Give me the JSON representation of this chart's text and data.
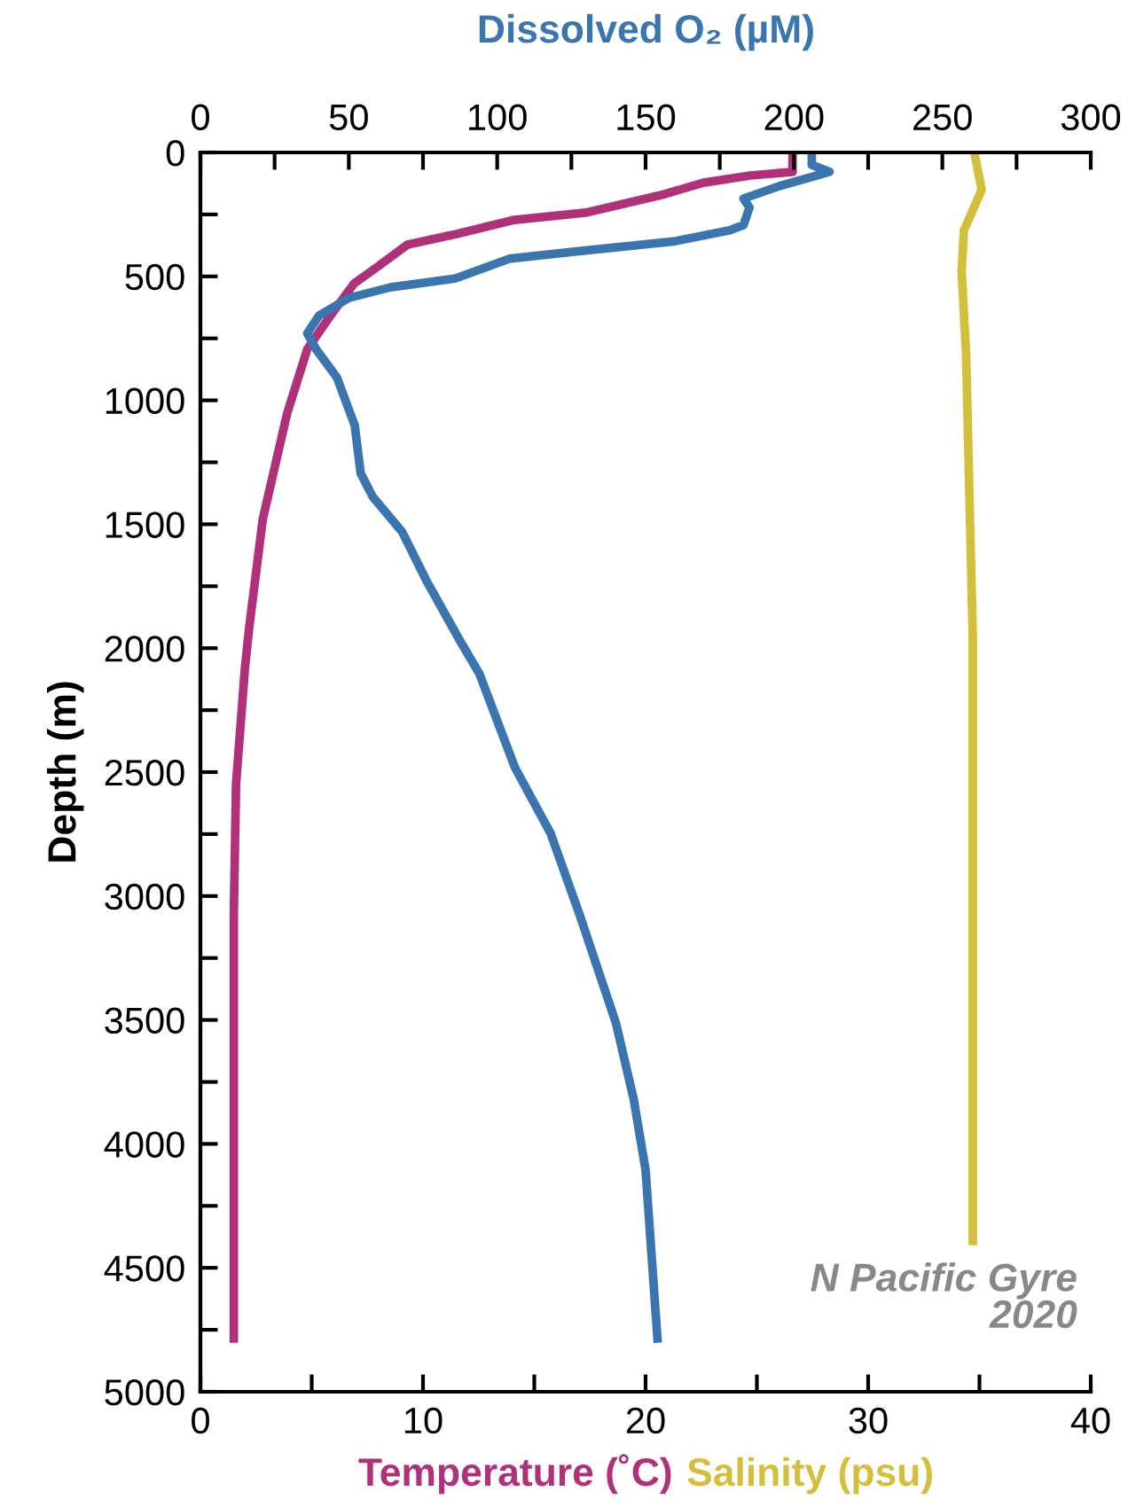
{
  "chart_data": {
    "type": "line",
    "ylabel": "Depth (m)",
    "annotations": [
      "N Pacific Gyre\n2020"
    ],
    "ylim": [
      5000,
      0
    ],
    "yticks": [
      0,
      {
        "value": 250,
        "label": null
      },
      500,
      {
        "value": 750,
        "label": null
      },
      1000,
      {
        "value": 1250,
        "label": null
      },
      1500,
      {
        "value": 1750,
        "label": null
      },
      2000,
      {
        "value": 2250,
        "label": null
      },
      2500,
      {
        "value": 2750,
        "label": null
      },
      3000,
      {
        "value": 3250,
        "label": null
      },
      3500,
      {
        "value": 3750,
        "label": null
      },
      4000,
      {
        "value": 4250,
        "label": null
      },
      4500,
      {
        "value": 4750,
        "label": null
      },
      5000
    ],
    "xlim": [
      0,
      40
    ],
    "xticks": [
      0,
      {
        "value": 5,
        "label": null
      },
      10,
      {
        "value": 15,
        "label": null
      },
      20,
      {
        "value": 25,
        "label": null
      },
      30,
      {
        "value": 35,
        "label": null
      },
      40
    ],
    "x2lim": [
      0,
      300
    ],
    "x2ticks": [
      0,
      {
        "value": 25,
        "label": null
      },
      50,
      {
        "value": 75,
        "label": null
      },
      100,
      {
        "value": 125,
        "label": null
      },
      150,
      {
        "value": 175,
        "label": null
      },
      200,
      {
        "value": 225,
        "label": null
      },
      250,
      {
        "value": 275,
        "label": null
      },
      300
    ],
    "grid": false,
    "legend": false,
    "series": [
      {
        "name": "Temperature (˚C)",
        "color": "#b0307a",
        "x": [
          26.6,
          26.6,
          24.7,
          22.6,
          20.7,
          17.3,
          14.1,
          11.5,
          9.3,
          8.0,
          6.9,
          5.9,
          4.8,
          3.9,
          2.8,
          2.2,
          2.0,
          1.6,
          1.5,
          1.5,
          1.5
        ],
        "values": [
          0,
          78,
          93,
          122,
          172,
          243,
          272,
          329,
          372,
          458,
          529,
          651,
          794,
          1051,
          1480,
          1910,
          2080,
          2550,
          3080,
          3910,
          4785
        ]
      },
      {
        "name": "Dissolved O₂ (µM)",
        "axis": "x2",
        "color": "#3b75b0",
        "x": [
          206,
          206,
          212,
          195,
          183,
          185,
          183,
          178,
          160,
          126,
          104,
          86,
          64,
          50,
          40,
          36,
          39,
          46,
          52,
          54,
          58,
          68,
          76,
          87,
          94,
          106,
          118,
          128,
          140,
          146,
          150,
          154
        ],
        "values": [
          0,
          50,
          78,
          136,
          186,
          222,
          293,
          315,
          358,
          400,
          429,
          508,
          544,
          587,
          658,
          730,
          794,
          908,
          1101,
          1295,
          1388,
          1531,
          1724,
          1960,
          2103,
          2482,
          2747,
          3083,
          3512,
          3820,
          4106,
          4785
        ]
      },
      {
        "name": "Salinity (psu)",
        "color": "#d4bf3c",
        "x": [
          34.8,
          35.1,
          34.3,
          34.2,
          34.4,
          34.7,
          34.7
        ],
        "values": [
          14,
          150,
          315,
          479,
          815,
          1960,
          4392
        ]
      }
    ]
  }
}
